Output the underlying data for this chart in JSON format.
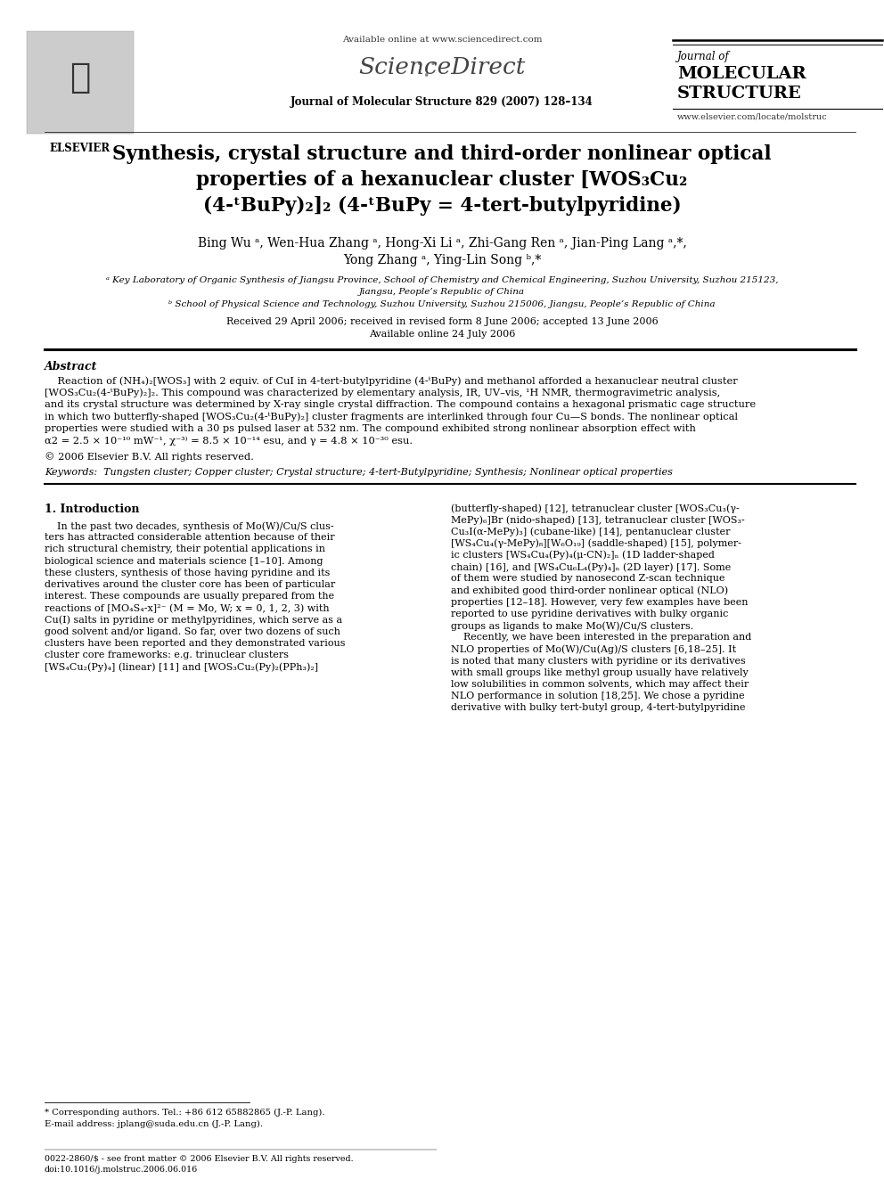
{
  "page_width": 9.92,
  "page_height": 13.23,
  "dpi": 100,
  "bg": "#ffffff",
  "header_available": "Available online at www.sciencedirect.com",
  "header_sciencedirect": "ScienceDirect",
  "header_journal_ref": "Journal of Molecular Structure 829 (2007) 128–134",
  "header_jof": "Journal of",
  "header_mol": "MOLECULAR",
  "header_struct": "STRUCTURE",
  "header_website": "www.elsevier.com/locate/molstruc",
  "elsevier_label": "ELSEVIER",
  "title1": "Synthesis, crystal structure and third-order nonlinear optical",
  "title2": "properties of a hexanuclear cluster [WOS₃Cu₂",
  "title3": "(4-ᵗBuPy)₂]₂ (4-ᵗBuPy = 4-tert-butylpyridine)",
  "authors1": "Bing Wu ᵃ, Wen-Hua Zhang ᵃ, Hong-Xi Li ᵃ, Zhi-Gang Ren ᵃ, Jian-Ping Lang ᵃ,*,",
  "authors2": "Yong Zhang ᵃ, Ying-Lin Song ᵇ,*",
  "affil_a": "ᵃ Key Laboratory of Organic Synthesis of Jiangsu Province, School of Chemistry and Chemical Engineering, Suzhou University, Suzhou 215123,",
  "affil_a2": "Jiangsu, People’s Republic of China",
  "affil_b": "ᵇ School of Physical Science and Technology, Suzhou University, Suzhou 215006, Jiangsu, People’s Republic of China",
  "received": "Received 29 April 2006; received in revised form 8 June 2006; accepted 13 June 2006",
  "available_online": "Available online 24 July 2006",
  "abstract_label": "Abstract",
  "abstract_lines": [
    "    Reaction of (NH₄)₂[WOS₃] with 2 equiv. of CuI in 4-tert-butylpyridine (4-ᵗBuPy) and methanol afforded a hexanuclear neutral cluster",
    "[WOS₃Cu₂(4-ᵗBuPy)₂]₂. This compound was characterized by elementary analysis, IR, UV–vis, ¹H NMR, thermogravimetric analysis,",
    "and its crystal structure was determined by X-ray single crystal diffraction. The compound contains a hexagonal prismatic cage structure",
    "in which two butterfly-shaped [WOS₃Cu₂(4-ᵗBuPy)₂] cluster fragments are interlinked through four Cu—S bonds. The nonlinear optical",
    "properties were studied with a 30 ps pulsed laser at 532 nm. The compound exhibited strong nonlinear absorption effect with",
    "α2 = 2.5 × 10⁻¹⁰ mW⁻¹, χ⁻³⁾ = 8.5 × 10⁻¹⁴ esu, and γ = 4.8 × 10⁻³⁰ esu."
  ],
  "copyright": "© 2006 Elsevier B.V. All rights reserved.",
  "keywords": "Keywords:  Tungsten cluster; Copper cluster; Crystal structure; 4-tert-Butylpyridine; Synthesis; Nonlinear optical properties",
  "sec1_title": "1. Introduction",
  "col1_lines": [
    "    In the past two decades, synthesis of Mo(W)/Cu/S clus-",
    "ters has attracted considerable attention because of their",
    "rich structural chemistry, their potential applications in",
    "biological science and materials science [1–10]. Among",
    "these clusters, synthesis of those having pyridine and its",
    "derivatives around the cluster core has been of particular",
    "interest. These compounds are usually prepared from the",
    "reactions of [MO₄S₄-x]²⁻ (M = Mo, W; x = 0, 1, 2, 3) with",
    "Cu(I) salts in pyridine or methylpyridines, which serve as a",
    "good solvent and/or ligand. So far, over two dozens of such",
    "clusters have been reported and they demonstrated various",
    "cluster core frameworks: e.g. trinuclear clusters",
    "[WS₄Cu₂(Py)₄] (linear) [11] and [WOS₃Cu₂(Py)₂(PPh₃)₂]"
  ],
  "col2_lines": [
    "(butterfly-shaped) [12], tetranuclear cluster [WOS₃Cu₃(γ-",
    "MePy)₆]Br (nido-shaped) [13], tetranuclear cluster [WOS₃-",
    "Cu₃I(α-MePy)₃] (cubane-like) [14], pentanuclear cluster",
    "[WS₄Cu₄(γ-MePy)₈][W₆O₁₉] (saddle-shaped) [15], polymer-",
    "ic clusters [WS₄Cu₄(Py)₄(μ-CN)₂]ₙ (1D ladder-shaped",
    "chain) [16], and [WS₄Cu₆L₄(Py)₄]ₙ (2D layer) [17]. Some",
    "of them were studied by nanosecond Z-scan technique",
    "and exhibited good third-order nonlinear optical (NLO)",
    "properties [12–18]. However, very few examples have been",
    "reported to use pyridine derivatives with bulky organic",
    "groups as ligands to make Mo(W)/Cu/S clusters.",
    "    Recently, we have been interested in the preparation and",
    "NLO properties of Mo(W)/Cu(Ag)/S clusters [6,18–25]. It",
    "is noted that many clusters with pyridine or its derivatives",
    "with small groups like methyl group usually have relatively",
    "low solubilities in common solvents, which may affect their",
    "NLO performance in solution [18,25]. We chose a pyridine",
    "derivative with bulky tert-butyl group, 4-tert-butylpyridine"
  ],
  "footnote1": "* Corresponding authors. Tel.: +86 612 65882865 (J.-P. Lang).",
  "footnote2": "E-mail address: jplang@suda.edu.cn (J.-P. Lang).",
  "footer1": "0022-2860/$ - see front matter © 2006 Elsevier B.V. All rights reserved.",
  "footer2": "doi:10.1016/j.molstruc.2006.06.016"
}
